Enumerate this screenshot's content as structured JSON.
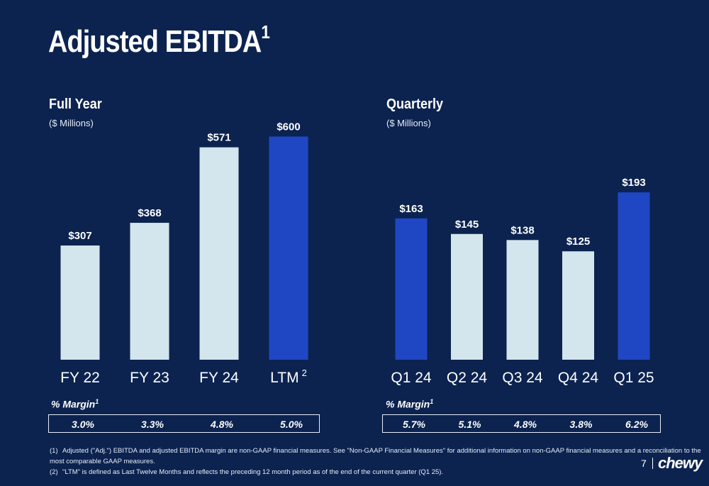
{
  "title": "Adjusted EBITDA",
  "title_sup": "1",
  "colors": {
    "background": "#0c2350",
    "bar_light": "#d3e6ee",
    "bar_highlight": "#1f47c4"
  },
  "chart_data": [
    {
      "type": "bar",
      "title": "Full Year",
      "subtitle": "($ Millions)",
      "categories": [
        "FY 22",
        "FY 23",
        "FY 24",
        "LTM"
      ],
      "category_superscripts": [
        "",
        "",
        "",
        "2"
      ],
      "values": [
        307,
        368,
        571,
        600
      ],
      "value_labels": [
        "$307",
        "$368",
        "$571",
        "$600"
      ],
      "highlighted": [
        false,
        false,
        false,
        true
      ],
      "ylim": [
        0,
        700
      ]
    },
    {
      "type": "bar",
      "title": "Quarterly",
      "subtitle": "($ Millions)",
      "categories": [
        "Q1 24",
        "Q2 24",
        "Q3 24",
        "Q4 24",
        "Q1 25"
      ],
      "category_superscripts": [
        "",
        "",
        "",
        "",
        ""
      ],
      "values": [
        163,
        145,
        138,
        125,
        193
      ],
      "value_labels": [
        "$163",
        "$145",
        "$138",
        "$125",
        "$193"
      ],
      "highlighted": [
        true,
        false,
        false,
        false,
        true
      ],
      "ylim": [
        0,
        225
      ]
    }
  ],
  "margin_full_year": {
    "label": "% Margin",
    "sup": "1",
    "values": [
      "3.0%",
      "3.3%",
      "4.8%",
      "5.0%"
    ]
  },
  "margin_quarterly": {
    "label": "% Margin",
    "sup": "1",
    "values": [
      "5.7%",
      "5.1%",
      "4.8%",
      "3.8%",
      "6.2%"
    ]
  },
  "footnotes": [
    {
      "num": "(1)",
      "text": "Adjusted (\"Adj.\") EBITDA and adjusted EBITDA margin are non-GAAP financial measures. See \"Non-GAAP Financial Measures\" for additional information on non-GAAP financial measures and a reconciliation to the most comparable GAAP measures."
    },
    {
      "num": "(2)",
      "text": "\"LTM\" is defined as Last Twelve Months and reflects the preceding 12 month period as of the end of the current quarter (Q1 25)."
    }
  ],
  "page_number": "7",
  "logo_text": "chewy"
}
